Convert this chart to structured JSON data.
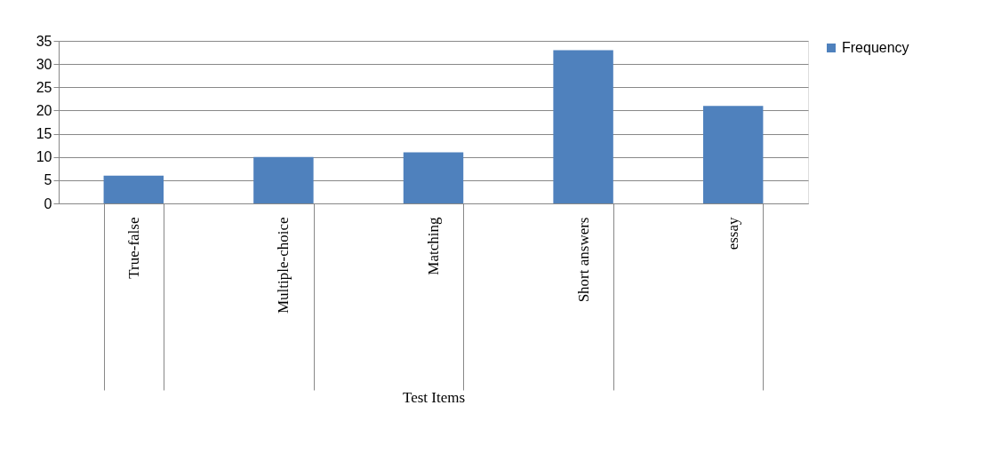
{
  "chart_data": {
    "type": "bar",
    "xlabel": "Test Items",
    "categories": [
      "True-false",
      "Multiple-choice",
      "Matching",
      "Short answers",
      "essay"
    ],
    "series": [
      {
        "name": "Frequency",
        "color": "#4f81bd",
        "values": [
          6,
          10,
          11,
          33,
          21
        ]
      }
    ],
    "ylim": [
      0,
      35
    ],
    "yticks": [
      0,
      5,
      10,
      15,
      20,
      25,
      30,
      35
    ],
    "grid": "y",
    "legend": "right"
  }
}
